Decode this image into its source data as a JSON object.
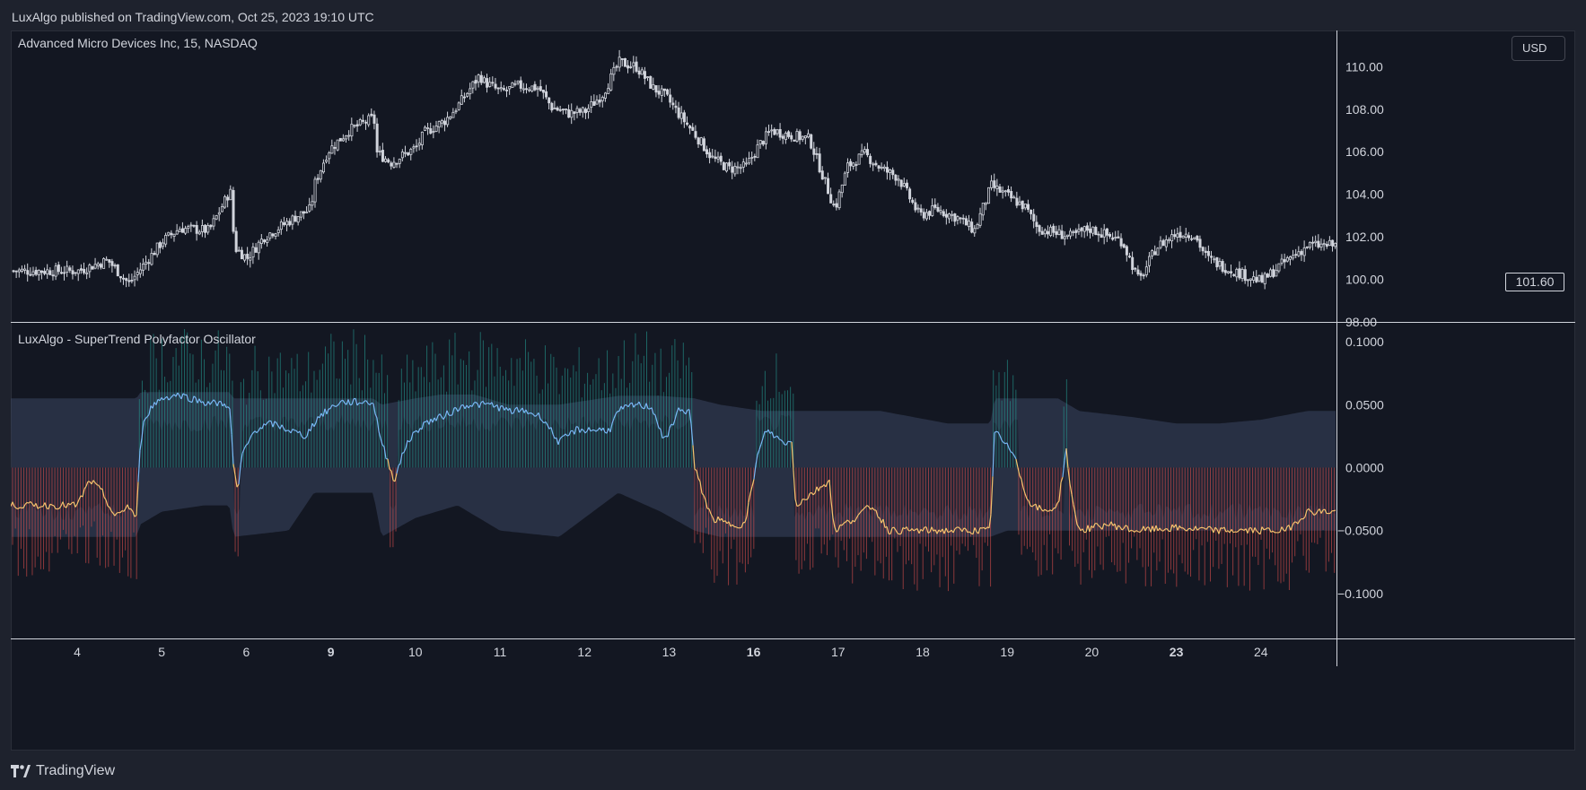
{
  "header": {
    "publisher_text": "LuxAlgo published on TradingView.com, Oct 25, 2023 19:10 UTC"
  },
  "main_pane": {
    "symbol_title": "Advanced Micro Devices Inc, 15, NASDAQ",
    "currency_button": "USD",
    "last_price": "101.60"
  },
  "indicator_pane": {
    "title": "LuxAlgo - SuperTrend Polyfactor Oscillator"
  },
  "footer": {
    "brand": "TradingView"
  },
  "colors": {
    "background": "#131722",
    "frame": "#1e222d",
    "candle": "#d1d4dc",
    "bull_histogram": "#26a69a",
    "bear_histogram": "#ef5350",
    "bull_line": "#7ab7f5",
    "bear_line": "#f5c36e",
    "band": "#3a4660"
  },
  "chart_data": [
    {
      "type": "candlestick",
      "title": "Advanced Micro Devices Inc, 15, NASDAQ",
      "ylim": [
        98,
        111.7
      ],
      "y_ticks": [
        "110.00",
        "108.00",
        "106.00",
        "104.00",
        "102.00",
        "100.00",
        "98.00"
      ],
      "x_ticks": [
        "4",
        "5",
        "6",
        "9",
        "10",
        "11",
        "12",
        "13",
        "16",
        "17",
        "18",
        "19",
        "20",
        "23",
        "24"
      ],
      "x_ticks_bold": [
        "9",
        "16",
        "23"
      ],
      "last_price": 101.6,
      "close_path": [
        [
          0,
          100.4
        ],
        [
          0.35,
          100.9
        ],
        [
          0.6,
          99.8
        ],
        [
          0.8,
          100.8
        ],
        [
          1.0,
          101.8
        ],
        [
          1.2,
          102.4
        ],
        [
          1.55,
          102.3
        ],
        [
          1.75,
          103.8
        ],
        [
          1.8,
          104.2
        ],
        [
          1.85,
          101.5
        ],
        [
          2.0,
          101.0
        ],
        [
          2.2,
          102.0
        ],
        [
          2.4,
          102.5
        ],
        [
          2.6,
          103.0
        ],
        [
          2.75,
          103.3
        ],
        [
          2.8,
          104.5
        ],
        [
          2.95,
          106.0
        ],
        [
          3.2,
          107.0
        ],
        [
          3.5,
          107.6
        ],
        [
          3.52,
          106.0
        ],
        [
          3.7,
          105.5
        ],
        [
          4.0,
          106.2
        ],
        [
          4.1,
          106.9
        ],
        [
          4.35,
          107.5
        ],
        [
          4.5,
          108.2
        ],
        [
          4.75,
          109.6
        ],
        [
          4.8,
          109.3
        ],
        [
          5.0,
          108.8
        ],
        [
          5.2,
          109.1
        ],
        [
          5.45,
          109.0
        ],
        [
          5.6,
          108.1
        ],
        [
          5.8,
          107.8
        ],
        [
          6.0,
          107.9
        ],
        [
          6.2,
          108.7
        ],
        [
          6.4,
          110.2
        ],
        [
          6.6,
          110.0
        ],
        [
          6.8,
          109.0
        ],
        [
          6.95,
          108.6
        ],
        [
          7.1,
          107.8
        ],
        [
          7.3,
          106.8
        ],
        [
          7.5,
          105.7
        ],
        [
          7.7,
          105.2
        ],
        [
          7.9,
          105.3
        ],
        [
          8.05,
          106.3
        ],
        [
          8.2,
          107.0
        ],
        [
          8.4,
          106.8
        ],
        [
          8.65,
          106.6
        ],
        [
          8.95,
          103.3
        ],
        [
          9.1,
          105.3
        ],
        [
          9.3,
          105.9
        ],
        [
          9.5,
          105.2
        ],
        [
          9.7,
          104.8
        ],
        [
          9.95,
          103.0
        ],
        [
          10.15,
          103.3
        ],
        [
          10.4,
          102.9
        ],
        [
          10.6,
          102.3
        ],
        [
          10.8,
          104.4
        ],
        [
          11.0,
          103.9
        ],
        [
          11.2,
          103.4
        ],
        [
          11.35,
          102.4
        ],
        [
          11.55,
          102.2
        ],
        [
          11.75,
          102.0
        ],
        [
          11.95,
          102.4
        ],
        [
          12.15,
          102.1
        ],
        [
          12.35,
          101.8
        ],
        [
          12.55,
          99.9
        ],
        [
          12.75,
          101.5
        ],
        [
          13.0,
          102.2
        ],
        [
          13.2,
          102.1
        ],
        [
          13.35,
          101.0
        ],
        [
          13.6,
          100.5
        ],
        [
          13.8,
          100.2
        ],
        [
          14.0,
          99.9
        ],
        [
          14.2,
          100.6
        ],
        [
          14.4,
          101.2
        ],
        [
          14.55,
          101.6
        ]
      ]
    },
    {
      "type": "oscillator",
      "title": "LuxAlgo - SuperTrend Polyfactor Oscillator",
      "ylim": [
        -0.135,
        0.115
      ],
      "y_ticks": [
        "0.1000",
        "0.0500",
        "0.0000",
        "−0.0500",
        "−0.1000"
      ],
      "oscillator_path": [
        [
          0,
          -0.03
        ],
        [
          0.15,
          -0.01
        ],
        [
          0.3,
          -0.02
        ],
        [
          0.45,
          -0.04
        ],
        [
          0.6,
          -0.03
        ],
        [
          0.7,
          -0.04
        ],
        [
          0.75,
          0.02
        ],
        [
          0.8,
          0.04
        ],
        [
          0.9,
          0.05
        ],
        [
          1.0,
          0.055
        ],
        [
          1.2,
          0.058
        ],
        [
          1.5,
          0.052
        ],
        [
          1.8,
          0.05
        ],
        [
          1.85,
          0.0
        ],
        [
          1.9,
          -0.02
        ],
        [
          1.95,
          0.01
        ],
        [
          2.1,
          0.03
        ],
        [
          2.3,
          0.035
        ],
        [
          2.5,
          0.03
        ],
        [
          2.7,
          0.025
        ],
        [
          2.85,
          0.04
        ],
        [
          3.1,
          0.052
        ],
        [
          3.5,
          0.052
        ],
        [
          3.6,
          0.02
        ],
        [
          3.75,
          -0.01
        ],
        [
          3.9,
          0.02
        ],
        [
          4.1,
          0.035
        ],
        [
          4.3,
          0.04
        ],
        [
          4.6,
          0.05
        ],
        [
          4.9,
          0.05
        ],
        [
          5.1,
          0.045
        ],
        [
          5.3,
          0.045
        ],
        [
          5.5,
          0.04
        ],
        [
          5.7,
          0.02
        ],
        [
          5.9,
          0.03
        ],
        [
          6.1,
          0.03
        ],
        [
          6.3,
          0.03
        ],
        [
          6.4,
          0.045
        ],
        [
          6.6,
          0.05
        ],
        [
          6.8,
          0.048
        ],
        [
          6.95,
          0.02
        ],
        [
          7.1,
          0.045
        ],
        [
          7.25,
          0.045
        ],
        [
          7.3,
          0.0
        ],
        [
          7.4,
          -0.02
        ],
        [
          7.5,
          -0.04
        ],
        [
          7.7,
          -0.045
        ],
        [
          7.9,
          -0.045
        ],
        [
          8.05,
          0.01
        ],
        [
          8.15,
          0.03
        ],
        [
          8.35,
          0.02
        ],
        [
          8.45,
          0.02
        ],
        [
          8.5,
          -0.03
        ],
        [
          8.7,
          -0.02
        ],
        [
          8.9,
          -0.01
        ],
        [
          8.95,
          -0.05
        ],
        [
          9.2,
          -0.04
        ],
        [
          9.4,
          -0.03
        ],
        [
          9.6,
          -0.05
        ],
        [
          9.9,
          -0.05
        ],
        [
          10.2,
          -0.05
        ],
        [
          10.6,
          -0.05
        ],
        [
          10.8,
          -0.05
        ],
        [
          10.85,
          0.03
        ],
        [
          10.95,
          0.02
        ],
        [
          11.1,
          0.01
        ],
        [
          11.2,
          -0.02
        ],
        [
          11.3,
          -0.03
        ],
        [
          11.45,
          -0.035
        ],
        [
          11.6,
          -0.03
        ],
        [
          11.7,
          0.015
        ],
        [
          11.75,
          -0.02
        ],
        [
          11.85,
          -0.05
        ],
        [
          12.2,
          -0.045
        ],
        [
          12.5,
          -0.05
        ],
        [
          13.0,
          -0.048
        ],
        [
          13.5,
          -0.05
        ],
        [
          14.0,
          -0.05
        ],
        [
          14.3,
          -0.05
        ],
        [
          14.55,
          -0.035
        ]
      ],
      "upper_band_path": [
        [
          0,
          0.055
        ],
        [
          0.7,
          0.055
        ],
        [
          0.75,
          0.06
        ],
        [
          1.8,
          0.06
        ],
        [
          1.85,
          0.055
        ],
        [
          2.5,
          0.055
        ],
        [
          2.8,
          0.055
        ],
        [
          3.5,
          0.055
        ],
        [
          3.6,
          0.05
        ],
        [
          4.0,
          0.055
        ],
        [
          4.3,
          0.058
        ],
        [
          4.7,
          0.058
        ],
        [
          5.1,
          0.05
        ],
        [
          5.7,
          0.05
        ],
        [
          6.4,
          0.057
        ],
        [
          6.9,
          0.057
        ],
        [
          7.3,
          0.055
        ],
        [
          7.6,
          0.05
        ],
        [
          8.1,
          0.045
        ],
        [
          8.5,
          0.045
        ],
        [
          8.9,
          0.045
        ],
        [
          8.95,
          0.045
        ],
        [
          9.5,
          0.045
        ],
        [
          9.9,
          0.04
        ],
        [
          10.3,
          0.035
        ],
        [
          10.8,
          0.035
        ],
        [
          10.85,
          0.055
        ],
        [
          11.6,
          0.055
        ],
        [
          11.85,
          0.045
        ],
        [
          12.5,
          0.04
        ],
        [
          13.0,
          0.035
        ],
        [
          13.5,
          0.035
        ],
        [
          14.0,
          0.038
        ],
        [
          14.55,
          0.045
        ]
      ],
      "lower_band_path": [
        [
          0,
          -0.055
        ],
        [
          0.7,
          -0.055
        ],
        [
          0.75,
          -0.045
        ],
        [
          1.0,
          -0.035
        ],
        [
          1.5,
          -0.03
        ],
        [
          1.8,
          -0.03
        ],
        [
          1.85,
          -0.055
        ],
        [
          2.5,
          -0.05
        ],
        [
          2.8,
          -0.02
        ],
        [
          3.5,
          -0.02
        ],
        [
          3.6,
          -0.055
        ],
        [
          4.0,
          -0.04
        ],
        [
          4.5,
          -0.03
        ],
        [
          5.0,
          -0.05
        ],
        [
          5.7,
          -0.055
        ],
        [
          6.0,
          -0.04
        ],
        [
          6.4,
          -0.02
        ],
        [
          6.9,
          -0.035
        ],
        [
          7.3,
          -0.05
        ],
        [
          7.6,
          -0.055
        ],
        [
          8.1,
          -0.055
        ],
        [
          8.5,
          -0.055
        ],
        [
          8.9,
          -0.055
        ],
        [
          9.5,
          -0.055
        ],
        [
          10.0,
          -0.055
        ],
        [
          10.8,
          -0.055
        ],
        [
          11.0,
          -0.05
        ],
        [
          11.6,
          -0.05
        ],
        [
          12.2,
          -0.05
        ],
        [
          13.0,
          -0.05
        ],
        [
          14.0,
          -0.05
        ],
        [
          14.55,
          -0.05
        ]
      ]
    }
  ]
}
